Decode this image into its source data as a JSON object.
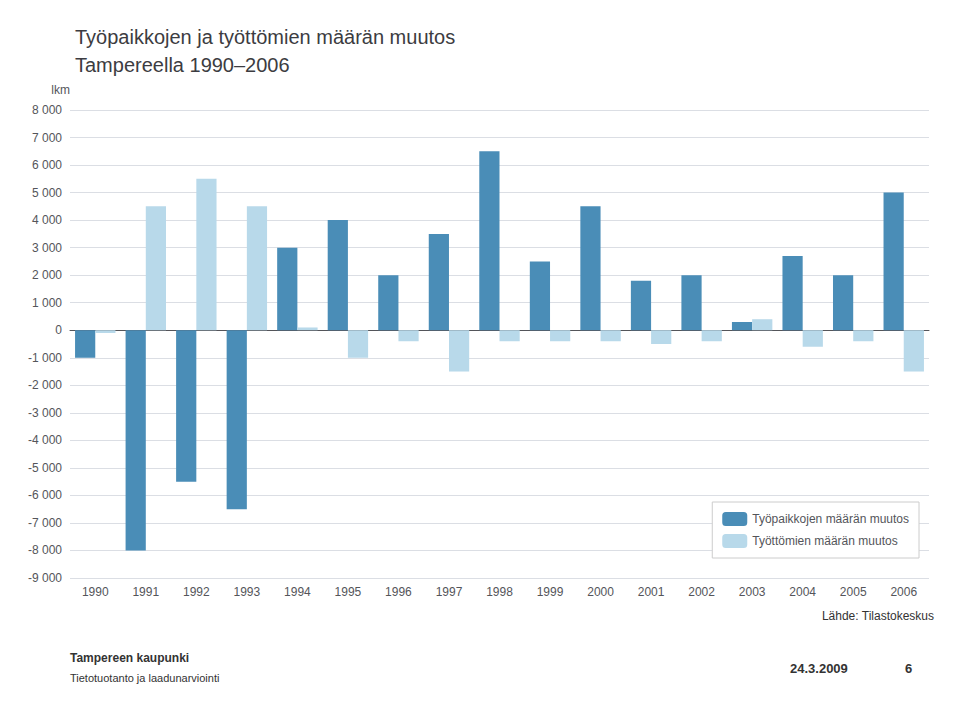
{
  "chart_data": {
    "type": "bar",
    "title": "Työpaikkojen ja työttömien määrän muutos\nTampereella 1990–2006",
    "ylabel": "lkm",
    "categories": [
      "1990",
      "1991",
      "1992",
      "1993",
      "1994",
      "1995",
      "1996",
      "1997",
      "1998",
      "1999",
      "2000",
      "2001",
      "2002",
      "2003",
      "2004",
      "2005",
      "2006"
    ],
    "series": [
      {
        "name": "Työpaikkojen määrän muutos",
        "color": "#4a8db7",
        "values": [
          -1000,
          -8000,
          -5500,
          -6500,
          3000,
          4000,
          2000,
          3500,
          6500,
          2500,
          4500,
          1800,
          2000,
          300,
          2700,
          2000,
          5000
        ]
      },
      {
        "name": "Työttömien määrän muutos",
        "color": "#b8d9ea",
        "values": [
          -100,
          4500,
          5500,
          4500,
          100,
          -1000,
          -400,
          -1500,
          -400,
          -400,
          -400,
          -500,
          -400,
          400,
          -600,
          -400,
          -1500
        ]
      }
    ],
    "ylim": [
      -9000,
      8000
    ],
    "yticks": [
      {
        "value": -9000,
        "label": "-9 000"
      },
      {
        "value": -8000,
        "label": "-8 000"
      },
      {
        "value": -7000,
        "label": "-7 000"
      },
      {
        "value": -6000,
        "label": "-6 000"
      },
      {
        "value": -5000,
        "label": "-5 000"
      },
      {
        "value": -4000,
        "label": "-4 000"
      },
      {
        "value": -3000,
        "label": "-3 000"
      },
      {
        "value": -2000,
        "label": "-2 000"
      },
      {
        "value": -1000,
        "label": "-1 000"
      },
      0,
      {
        "value": 1000,
        "label": "1 000"
      },
      {
        "value": 2000,
        "label": "2 000"
      },
      {
        "value": 3000,
        "label": "3 000"
      },
      {
        "value": 4000,
        "label": "4 000"
      },
      {
        "value": 5000,
        "label": "5 000"
      },
      {
        "value": 6000,
        "label": "6 000"
      },
      {
        "value": 7000,
        "label": "7 000"
      },
      {
        "value": 8000,
        "label": "8 000"
      }
    ],
    "grid": true,
    "legend": "lower right",
    "annotations": [
      "Lähde: Tilastokeskus",
      "Tampereen kaupunki",
      "Tietotuotanto ja laadunarviointi",
      "24.3.2009",
      "6"
    ]
  }
}
